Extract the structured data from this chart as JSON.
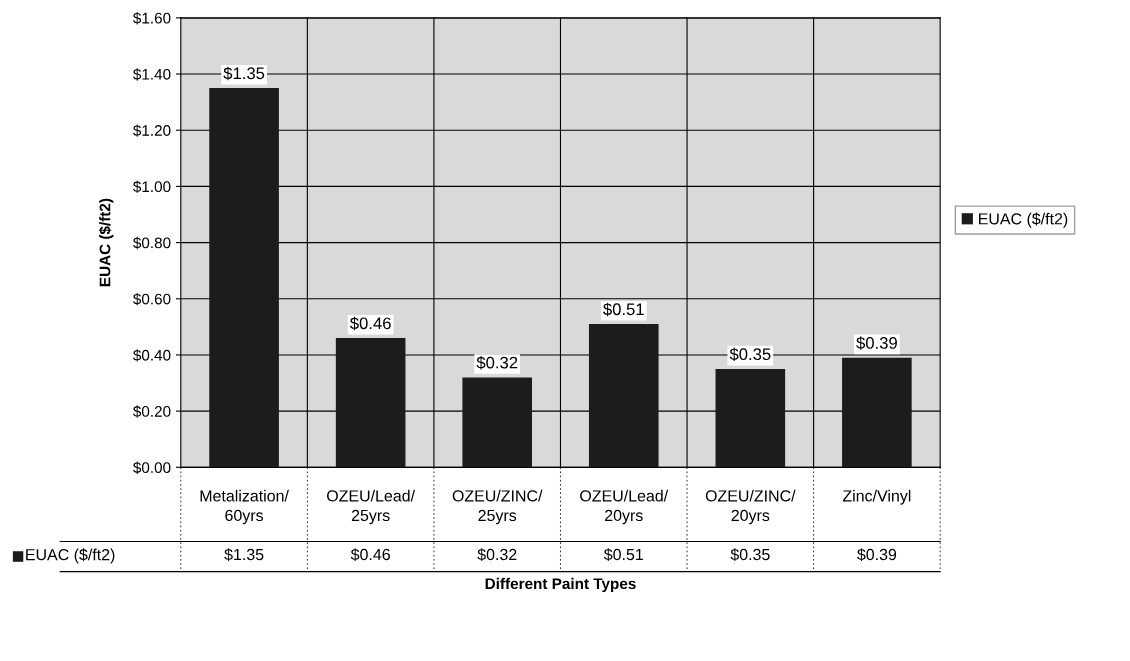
{
  "chart_data": {
    "type": "bar",
    "xlabel": "Different Paint Types",
    "ylabel": "EUAC ($/ft2)",
    "categories": [
      "Metalization/ 60yrs",
      "OZEU/Lead/ 25yrs",
      "OZEU/ZINC/ 25yrs",
      "OZEU/Lead/ 20yrs",
      "OZEU/ZINC/ 20yrs",
      "Zinc/Vinyl"
    ],
    "series": [
      {
        "name": "EUAC ($/ft2)",
        "color": "#1c1c1c",
        "values": [
          1.35,
          0.46,
          0.32,
          0.51,
          0.35,
          0.39
        ],
        "value_labels": [
          "$1.35",
          "$0.46",
          "$0.32",
          "$0.51",
          "$0.35",
          "$0.39"
        ]
      }
    ],
    "ylim": [
      0,
      1.6
    ],
    "yticks": [
      {
        "value": 0,
        "label": "$0.00"
      },
      {
        "value": 0.2,
        "label": "$0.20"
      },
      {
        "value": 0.4,
        "label": "$0.40"
      },
      {
        "value": 0.6,
        "label": "$0.60"
      },
      {
        "value": 0.8,
        "label": "$0.80"
      },
      {
        "value": 1.0,
        "label": "$1.00"
      },
      {
        "value": 1.2,
        "label": "$1.20"
      },
      {
        "value": 1.4,
        "label": "$1.40"
      },
      {
        "value": 1.6,
        "label": "$1.60"
      }
    ],
    "grid": true,
    "legend": "right"
  }
}
